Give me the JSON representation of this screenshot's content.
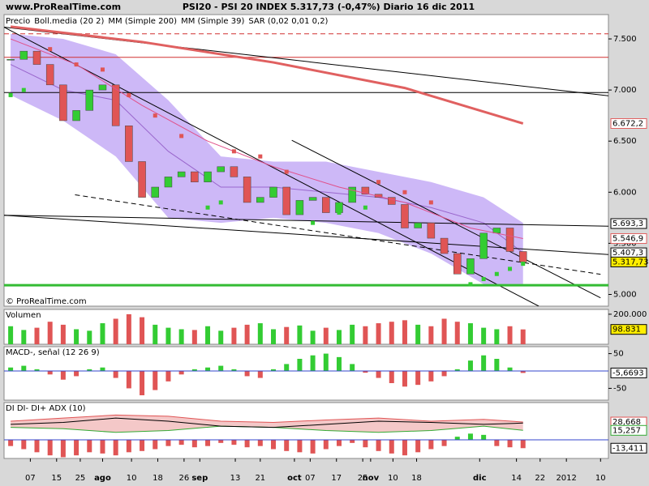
{
  "header": {
    "site": "www.ProRealTime.com",
    "title": "PSI20 - PSI 20 INDEX   5.317,73 (-0,47%)   Diario  16 dic 2011"
  },
  "chart_data": [
    {
      "type": "candlestick",
      "watermark": "© ProRealTime.com",
      "xlim": [
        -0.5,
        45.5
      ],
      "ylim": [
        4885,
        7738
      ],
      "yticks": [
        {
          "value": 5000,
          "label": "5.000"
        },
        {
          "value": 5500,
          "label": "5.500"
        },
        {
          "value": 6000,
          "label": "6.000"
        },
        {
          "value": 6500,
          "label": "6.500"
        },
        {
          "value": 7000,
          "label": "7.000"
        },
        {
          "value": 7500,
          "label": "7.500"
        }
      ],
      "up_color": "#33cc33",
      "down_color": "#e05555",
      "series": [
        {
          "name": "Precio",
          "kind": "candle",
          "color": "#333333",
          "x": [
            0,
            1,
            2,
            3,
            4,
            5,
            6,
            7,
            8,
            9,
            10,
            11,
            12,
            13,
            14,
            15,
            16,
            17,
            18,
            19,
            20,
            21,
            22,
            23,
            24,
            25,
            26,
            27,
            28,
            29,
            30,
            31,
            32,
            33,
            34,
            35,
            36,
            37,
            38,
            39
          ],
          "values": [
            7300,
            7380,
            7250,
            7050,
            6700,
            6800,
            7000,
            7050,
            6650,
            6300,
            5950,
            6050,
            6150,
            6200,
            6100,
            6200,
            6250,
            6150,
            5900,
            5950,
            6050,
            5780,
            5920,
            5950,
            5800,
            5900,
            6050,
            5980,
            5950,
            5880,
            5650,
            5700,
            5550,
            5400,
            5200,
            5350,
            5600,
            5650,
            5420,
            5317.73
          ]
        },
        {
          "name": "Boll.media (20 2)",
          "kind": "band",
          "color": "#9966cc",
          "fill": "#cdb8f7",
          "x": [
            0,
            4,
            8,
            12,
            16,
            20,
            24,
            28,
            32,
            36,
            39
          ],
          "upper": [
            7550,
            7500,
            7350,
            6900,
            6350,
            6300,
            6300,
            6200,
            6100,
            5950,
            5700
          ],
          "middle": [
            7250,
            7000,
            6900,
            6400,
            6050,
            6050,
            6000,
            5950,
            5850,
            5700,
            5407.3
          ],
          "lower": [
            6950,
            6700,
            6350,
            5750,
            5700,
            5750,
            5700,
            5600,
            5400,
            5100,
            5100
          ]
        },
        {
          "name": "MM (Simple 200)",
          "kind": "line",
          "color": "#e06060",
          "width": 3,
          "x": [
            0,
            10,
            20,
            30,
            39
          ],
          "values": [
            7620,
            7470,
            7270,
            7020,
            6672.2
          ]
        },
        {
          "name": "MM (Simple 39)",
          "kind": "line",
          "color": "#e0508a",
          "width": 1,
          "x": [
            0,
            5,
            10,
            15,
            20,
            25,
            30,
            35,
            39
          ],
          "values": [
            7500,
            7250,
            6850,
            6500,
            6250,
            6050,
            5900,
            5650,
            5546.9
          ]
        },
        {
          "name": "SAR (0,02 0,01 0,2)",
          "kind": "dots",
          "color": "#d06080",
          "x": [
            0,
            1,
            3,
            5,
            7,
            9,
            11,
            13,
            15,
            16,
            17,
            19,
            21,
            23,
            25,
            27,
            28,
            30,
            32,
            35,
            36,
            37,
            38,
            39
          ],
          "values": [
            6950,
            7000,
            7400,
            7250,
            7200,
            6950,
            6750,
            6550,
            5850,
            5900,
            6400,
            6350,
            6200,
            5700,
            5800,
            5850,
            6100,
            6000,
            5900,
            5100,
            5150,
            5200,
            5250,
            5300
          ]
        }
      ],
      "lines": [
        {
          "x": [
            -0.5,
            45.5
          ],
          "values": [
            7550,
            7550
          ],
          "color": "#d03030",
          "dash": true
        },
        {
          "x": [
            -0.5,
            45.5
          ],
          "values": [
            7320,
            7320
          ],
          "color": "#d03030",
          "dash": false
        },
        {
          "x": [
            -0.5,
            45.5
          ],
          "values": [
            6975,
            6975
          ],
          "color": "#000000",
          "dash": false
        },
        {
          "x": [
            -0.5,
            45.5
          ],
          "values": [
            7615,
            6943
          ],
          "color": "#000000",
          "dash": false
        },
        {
          "x": [
            -0.5,
            45.5
          ],
          "values": [
            5775,
            5668
          ],
          "color": "#000000",
          "dash": false
        },
        {
          "x": [
            -0.5,
            45.5
          ],
          "values": [
            5775,
            5390
          ],
          "color": "#000000",
          "dash": false
        },
        {
          "x": [
            -0.5,
            40.2
          ],
          "values": [
            7615,
            4885
          ],
          "color": "#000000",
          "dash": false
        },
        {
          "x": [
            21.4,
            44.9
          ],
          "values": [
            6508,
            4967
          ],
          "color": "#000000",
          "dash": false
        },
        {
          "x": [
            4.9,
            44.9
          ],
          "values": [
            5975,
            5197
          ],
          "color": "#000000",
          "dash": true
        },
        {
          "x": [
            -0.5,
            45.5
          ],
          "values": [
            5090,
            5090
          ],
          "color": "#33bb33",
          "dash": false,
          "width": 3
        }
      ],
      "markers": [
        {
          "value": 6672.2,
          "label": "6.672,2",
          "color": "#e06060"
        },
        {
          "value": 5693.3,
          "label": "5.693,3",
          "color": "#000000"
        },
        {
          "value": 5546.9,
          "label": "5.546,9",
          "color": "#e06060"
        },
        {
          "value": 5407.3,
          "label": "5.407,3",
          "color": "#000000"
        },
        {
          "value": 5317.73,
          "label": "5.317,73",
          "color": "#000000",
          "highlight": true
        }
      ]
    },
    {
      "type": "bar",
      "title": "Volumen",
      "color_by_price": true,
      "ylim": [
        0,
        232000
      ],
      "yticks": [
        {
          "value": 200000,
          "label": "200.000"
        }
      ],
      "x": [
        0,
        1,
        2,
        3,
        4,
        5,
        6,
        7,
        8,
        9,
        10,
        11,
        12,
        13,
        14,
        15,
        16,
        17,
        18,
        19,
        20,
        21,
        22,
        23,
        24,
        25,
        26,
        27,
        28,
        29,
        30,
        31,
        32,
        33,
        34,
        35,
        36,
        37,
        38,
        39
      ],
      "values": [
        120000,
        95000,
        110000,
        150000,
        130000,
        100000,
        90000,
        140000,
        170000,
        200000,
        180000,
        130000,
        110000,
        100000,
        95000,
        120000,
        90000,
        110000,
        130000,
        140000,
        100000,
        115000,
        125000,
        90000,
        110000,
        95000,
        130000,
        120000,
        140000,
        150000,
        160000,
        130000,
        120000,
        170000,
        150000,
        140000,
        110000,
        100000,
        120000,
        98831
      ],
      "markers": [
        {
          "value": 98831,
          "label": "98.831",
          "color": "#000000",
          "highlight": true
        }
      ]
    },
    {
      "type": "bar",
      "title": "MACD-, señal (12 26 9)",
      "pos_color": "#33cc33",
      "neg_color": "#e05555",
      "zero_line": true,
      "ylim": [
        -84,
        70
      ],
      "yticks": [
        50,
        -50
      ],
      "x": [
        0,
        1,
        2,
        3,
        4,
        5,
        6,
        7,
        8,
        9,
        10,
        11,
        12,
        13,
        14,
        15,
        16,
        17,
        18,
        19,
        20,
        21,
        22,
        23,
        24,
        25,
        26,
        27,
        28,
        29,
        30,
        31,
        32,
        33,
        34,
        35,
        36,
        37,
        38,
        39
      ],
      "values": [
        10,
        15,
        5,
        -10,
        -25,
        -15,
        5,
        10,
        -20,
        -50,
        -70,
        -55,
        -30,
        -10,
        5,
        10,
        15,
        5,
        -15,
        -20,
        5,
        20,
        35,
        45,
        50,
        40,
        20,
        -5,
        -20,
        -35,
        -45,
        -40,
        -30,
        -15,
        5,
        30,
        45,
        35,
        10,
        -5.6693
      ],
      "markers": [
        {
          "value": -5.6693,
          "label": "-5,6693",
          "color": "#000000"
        }
      ]
    },
    {
      "type": "bar",
      "title": "DI DI- DI+ ADX (10)",
      "pos_color": "#33cc33",
      "neg_color": "#e05555",
      "zero_line": true,
      "ylim": [
        -30,
        60
      ],
      "x": [
        0,
        1,
        2,
        3,
        4,
        5,
        6,
        7,
        8,
        9,
        10,
        11,
        12,
        13,
        14,
        15,
        16,
        17,
        18,
        19,
        20,
        21,
        22,
        23,
        24,
        25,
        26,
        27,
        28,
        29,
        30,
        31,
        32,
        33,
        34,
        35,
        36,
        37,
        38,
        39
      ],
      "values": [
        -10,
        -15,
        -20,
        -25,
        -28,
        -25,
        -20,
        -22,
        -25,
        -20,
        -18,
        -15,
        -10,
        -8,
        -12,
        -10,
        -5,
        -8,
        -12,
        -10,
        -15,
        -18,
        -20,
        -22,
        -15,
        -10,
        -5,
        -12,
        -18,
        -22,
        -25,
        -20,
        -15,
        -10,
        5,
        10,
        8,
        -10,
        -12,
        -13.411
      ],
      "series": [
        {
          "name": "DI-",
          "kind": "line",
          "color": "#e05555",
          "width": 1,
          "x": [
            0,
            4,
            8,
            12,
            16,
            20,
            24,
            28,
            32,
            36,
            39
          ],
          "values": [
            30,
            35,
            40,
            38,
            30,
            28,
            32,
            35,
            30,
            33,
            28.668
          ]
        },
        {
          "name": "DI+",
          "kind": "line",
          "color": "#33aa33",
          "width": 1,
          "x": [
            0,
            4,
            8,
            12,
            16,
            20,
            24,
            28,
            32,
            36,
            39
          ],
          "values": [
            20,
            18,
            12,
            15,
            22,
            20,
            15,
            12,
            15,
            22,
            15.257
          ]
        },
        {
          "name": "ADX",
          "kind": "line",
          "color": "#000000",
          "width": 1,
          "x": [
            0,
            4,
            8,
            12,
            16,
            20,
            24,
            28,
            32,
            36,
            39
          ],
          "values": [
            25,
            28,
            35,
            30,
            22,
            20,
            25,
            30,
            28,
            25,
            27
          ]
        }
      ],
      "markers": [
        {
          "value": 28.668,
          "label": "28,668",
          "color": "#e05555"
        },
        {
          "value": 15.257,
          "label": "15,257",
          "color": "#33aa33"
        },
        {
          "value": -13.411,
          "label": "-13,411",
          "color": "#000000"
        }
      ],
      "xticks": [
        {
          "value": 1.5,
          "label": "07"
        },
        {
          "value": 3.5,
          "label": "15"
        },
        {
          "value": 5.3,
          "label": "25"
        },
        {
          "value": 7,
          "label": "ago"
        },
        {
          "value": 9.2,
          "label": "10"
        },
        {
          "value": 11.2,
          "label": "18"
        },
        {
          "value": 13.2,
          "label": "26"
        },
        {
          "value": 14.4,
          "label": "sep"
        },
        {
          "value": 17.1,
          "label": "13"
        },
        {
          "value": 19,
          "label": "21"
        },
        {
          "value": 21.6,
          "label": "oct"
        },
        {
          "value": 22.8,
          "label": "07"
        },
        {
          "value": 24.8,
          "label": "17"
        },
        {
          "value": 26.8,
          "label": "25"
        },
        {
          "value": 27.4,
          "label": "nov"
        },
        {
          "value": 29.1,
          "label": "10"
        },
        {
          "value": 30.9,
          "label": "18"
        },
        {
          "value": 35.7,
          "label": "dic"
        },
        {
          "value": 38.5,
          "label": "14"
        },
        {
          "value": 40.3,
          "label": "22"
        },
        {
          "value": 42.3,
          "label": "2012"
        },
        {
          "value": 44.9,
          "label": "10"
        }
      ]
    }
  ]
}
